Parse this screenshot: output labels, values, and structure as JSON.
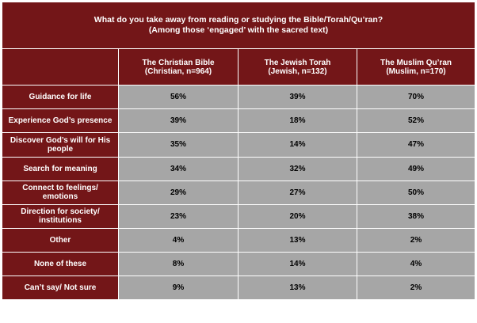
{
  "chart_data": {
    "type": "table",
    "title": "What do you take away from reading or studying the Bible/Torah/Qu’ran?",
    "subtitle": "(Among those ‘engaged’ with the sacred text)",
    "columns": [
      {
        "name": "The Christian Bible",
        "subname": "(Christian, n=964)"
      },
      {
        "name": "The Jewish Torah",
        "subname": "(Jewish, n=132)"
      },
      {
        "name": "The Muslim Qu’ran",
        "subname": "(Muslim, n=170)"
      }
    ],
    "rows": [
      {
        "label": "Guidance for life",
        "values": [
          "56%",
          "39%",
          "70%"
        ]
      },
      {
        "label": "Experience God’s presence",
        "values": [
          "39%",
          "18%",
          "52%"
        ]
      },
      {
        "label": "Discover God’s will for His people",
        "values": [
          "35%",
          "14%",
          "47%"
        ]
      },
      {
        "label": "Search for meaning",
        "values": [
          "34%",
          "32%",
          "49%"
        ]
      },
      {
        "label": "Connect to feelings/ emotions",
        "values": [
          "29%",
          "27%",
          "50%"
        ]
      },
      {
        "label": "Direction for society/ institutions",
        "values": [
          "23%",
          "20%",
          "38%"
        ]
      },
      {
        "label": "Other",
        "values": [
          "4%",
          "13%",
          "2%"
        ]
      },
      {
        "label": "None of these",
        "values": [
          "8%",
          "14%",
          "4%"
        ]
      },
      {
        "label": "Can’t say/ Not sure",
        "values": [
          "9%",
          "13%",
          "2%"
        ]
      }
    ],
    "colors": {
      "header": "#731618",
      "cell": "#a6a6a6"
    }
  }
}
